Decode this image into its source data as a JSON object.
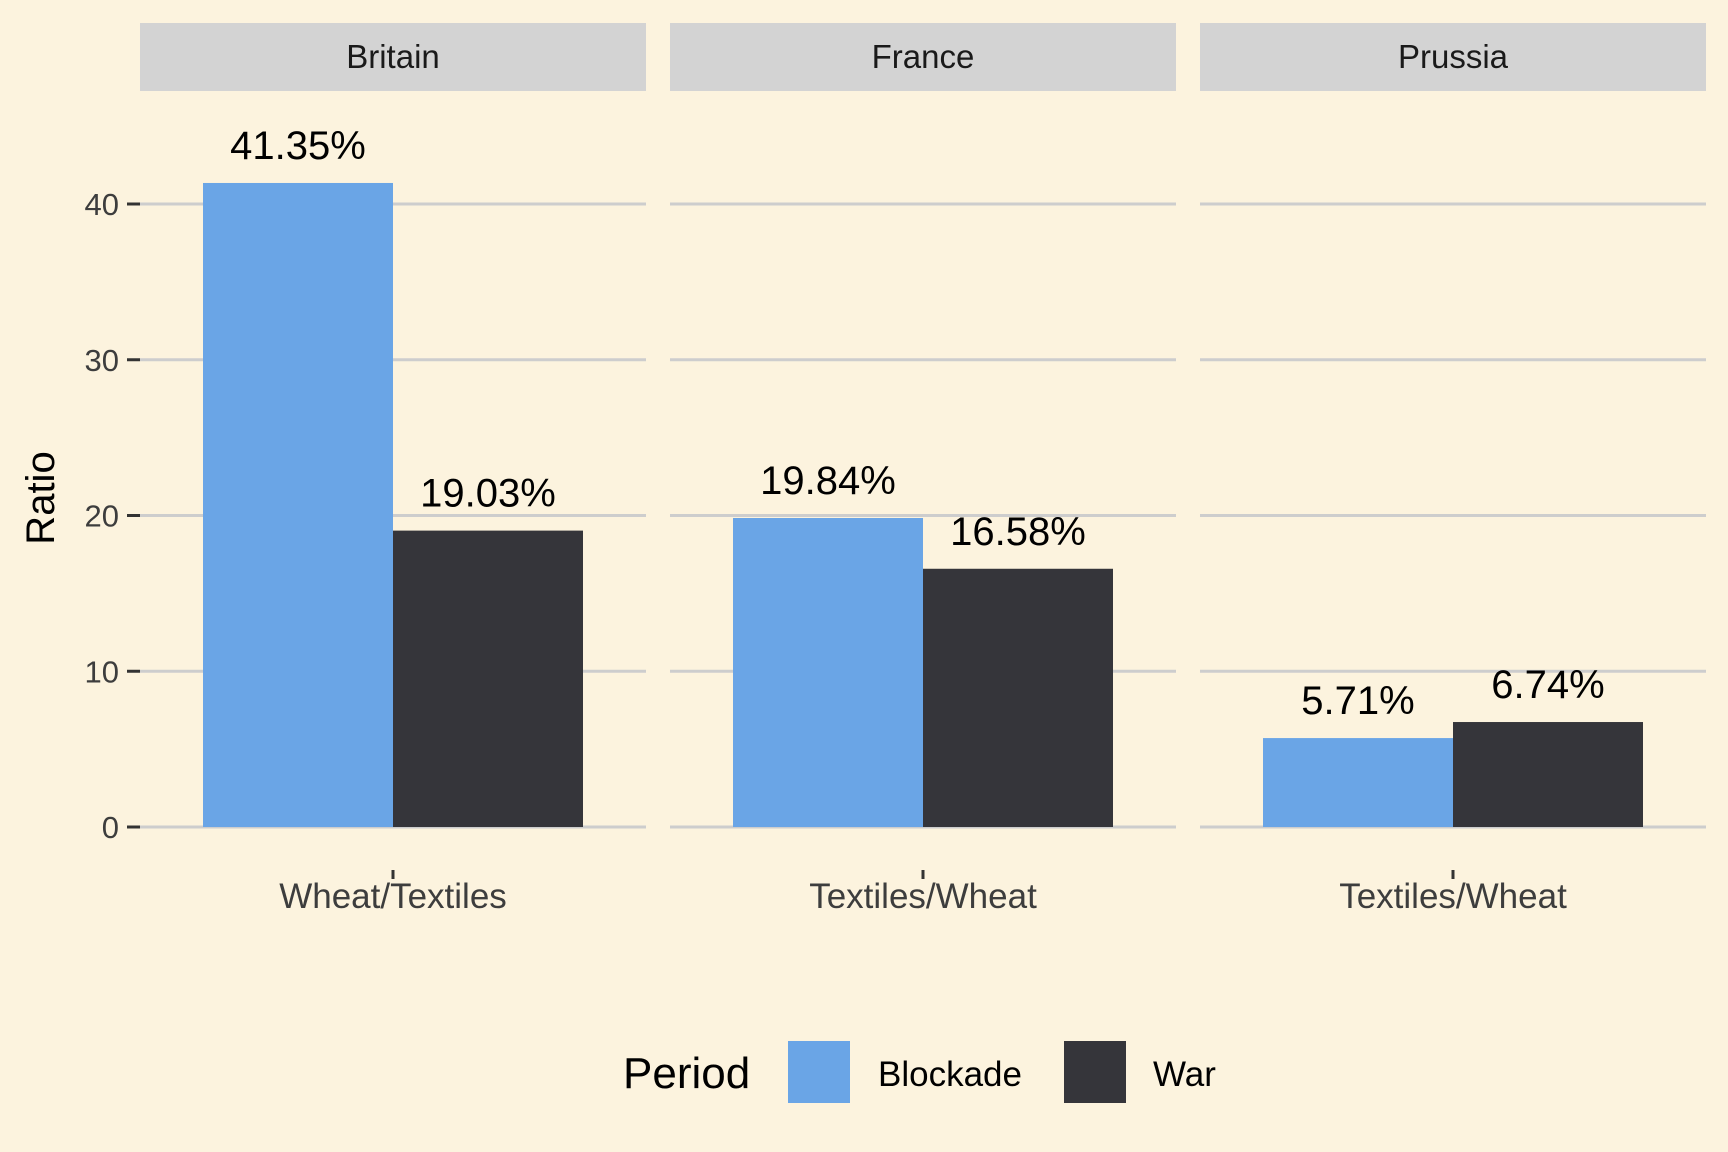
{
  "chart_data": {
    "type": "bar",
    "facets": [
      "Britain",
      "France",
      "Prussia"
    ],
    "facet_categories": [
      "Wheat/Textiles",
      "Textiles/Wheat",
      "Textiles/Wheat"
    ],
    "series": [
      {
        "name": "Blockade",
        "values": [
          41.35,
          19.84,
          5.71
        ],
        "labels": [
          "41.35%",
          "19.84%",
          "5.71%"
        ],
        "color": "#6AA5E6"
      },
      {
        "name": "War",
        "values": [
          19.03,
          16.58,
          6.74
        ],
        "labels": [
          "19.03%",
          "16.58%",
          "6.74%"
        ],
        "color": "#35353A"
      }
    ],
    "ylabel": "Ratio",
    "xlabel": "",
    "ylim": [
      0,
      45
    ],
    "yticks": [
      0,
      10,
      20,
      30,
      40
    ],
    "legend": {
      "title": "Period",
      "position": "bottom"
    },
    "grid": "horizontal-major",
    "colors": {
      "background": "#FCF3DE",
      "strip": "#D3D3D3",
      "grid": "#CDCDCD",
      "text": "#000000",
      "tick_text": "#3D3D3D"
    }
  }
}
